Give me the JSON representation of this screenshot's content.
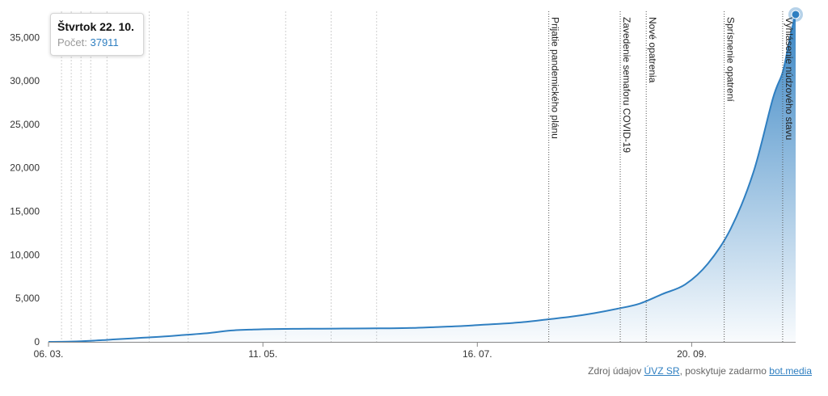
{
  "chart_data": {
    "type": "area",
    "ylim": [
      0,
      38000
    ],
    "yticks": [
      "0",
      "5,000",
      "10,000",
      "15,000",
      "20,000",
      "25,000",
      "30,000",
      "35,000"
    ],
    "ytick_values": [
      0,
      5000,
      10000,
      15000,
      20000,
      25000,
      30000,
      35000
    ],
    "xlim": [
      "2020-03-06",
      "2020-10-22"
    ],
    "xticks": [
      {
        "date": "2020-03-06",
        "label": "06. 03."
      },
      {
        "date": "2020-05-11",
        "label": "11. 05."
      },
      {
        "date": "2020-07-16",
        "label": "16. 07."
      },
      {
        "date": "2020-09-20",
        "label": "20. 09."
      }
    ],
    "grid": "vertical dotted",
    "series": [
      {
        "color": "#2f7fc1",
        "points": [
          [
            "2020-03-06",
            1
          ],
          [
            "2020-03-13",
            30
          ],
          [
            "2020-03-20",
            140
          ],
          [
            "2020-03-27",
            300
          ],
          [
            "2020-04-03",
            450
          ],
          [
            "2020-04-10",
            600
          ],
          [
            "2020-04-17",
            800
          ],
          [
            "2020-04-24",
            1000
          ],
          [
            "2020-05-01",
            1300
          ],
          [
            "2020-05-08",
            1420
          ],
          [
            "2020-05-15",
            1480
          ],
          [
            "2020-05-22",
            1500
          ],
          [
            "2020-05-29",
            1510
          ],
          [
            "2020-06-05",
            1530
          ],
          [
            "2020-06-12",
            1550
          ],
          [
            "2020-06-19",
            1560
          ],
          [
            "2020-06-26",
            1600
          ],
          [
            "2020-07-03",
            1700
          ],
          [
            "2020-07-10",
            1800
          ],
          [
            "2020-07-17",
            1950
          ],
          [
            "2020-07-24",
            2100
          ],
          [
            "2020-07-31",
            2300
          ],
          [
            "2020-08-07",
            2600
          ],
          [
            "2020-08-14",
            2900
          ],
          [
            "2020-08-21",
            3300
          ],
          [
            "2020-08-28",
            3800
          ],
          [
            "2020-09-04",
            4400
          ],
          [
            "2020-09-11",
            5500
          ],
          [
            "2020-09-18",
            6600
          ],
          [
            "2020-09-25",
            9000
          ],
          [
            "2020-10-02",
            13000
          ],
          [
            "2020-10-09",
            19500
          ],
          [
            "2020-10-15",
            28000
          ],
          [
            "2020-10-18",
            31000
          ],
          [
            "2020-10-20",
            34500
          ],
          [
            "2020-10-22",
            37911
          ]
        ]
      }
    ],
    "minor_event_dates": [
      "2020-03-10",
      "2020-03-13",
      "2020-03-16",
      "2020-03-19",
      "2020-03-24",
      "2020-04-06",
      "2020-04-18",
      "2020-05-18",
      "2020-06-01",
      "2020-06-15"
    ],
    "events": [
      {
        "date": "2020-08-07",
        "label": "Prijatie pandemického plánu"
      },
      {
        "date": "2020-08-29",
        "label": "Zavedenie semaforu COVID-19"
      },
      {
        "date": "2020-09-06",
        "label": "Nové opatrenia"
      },
      {
        "date": "2020-09-30",
        "label": "Sprísnenie opatrení"
      },
      {
        "date": "2020-10-18",
        "label": "Vyhlásenie núdzového stavu"
      }
    ]
  },
  "tooltip": {
    "title": "Štvrtok 22. 10.",
    "label": "Počet:",
    "value": "37911"
  },
  "source": {
    "prefix": "Zdroj údajov",
    "link1": "ÚVZ SR",
    "middle": ", poskytuje zadarmo",
    "link2": "bot.media"
  }
}
